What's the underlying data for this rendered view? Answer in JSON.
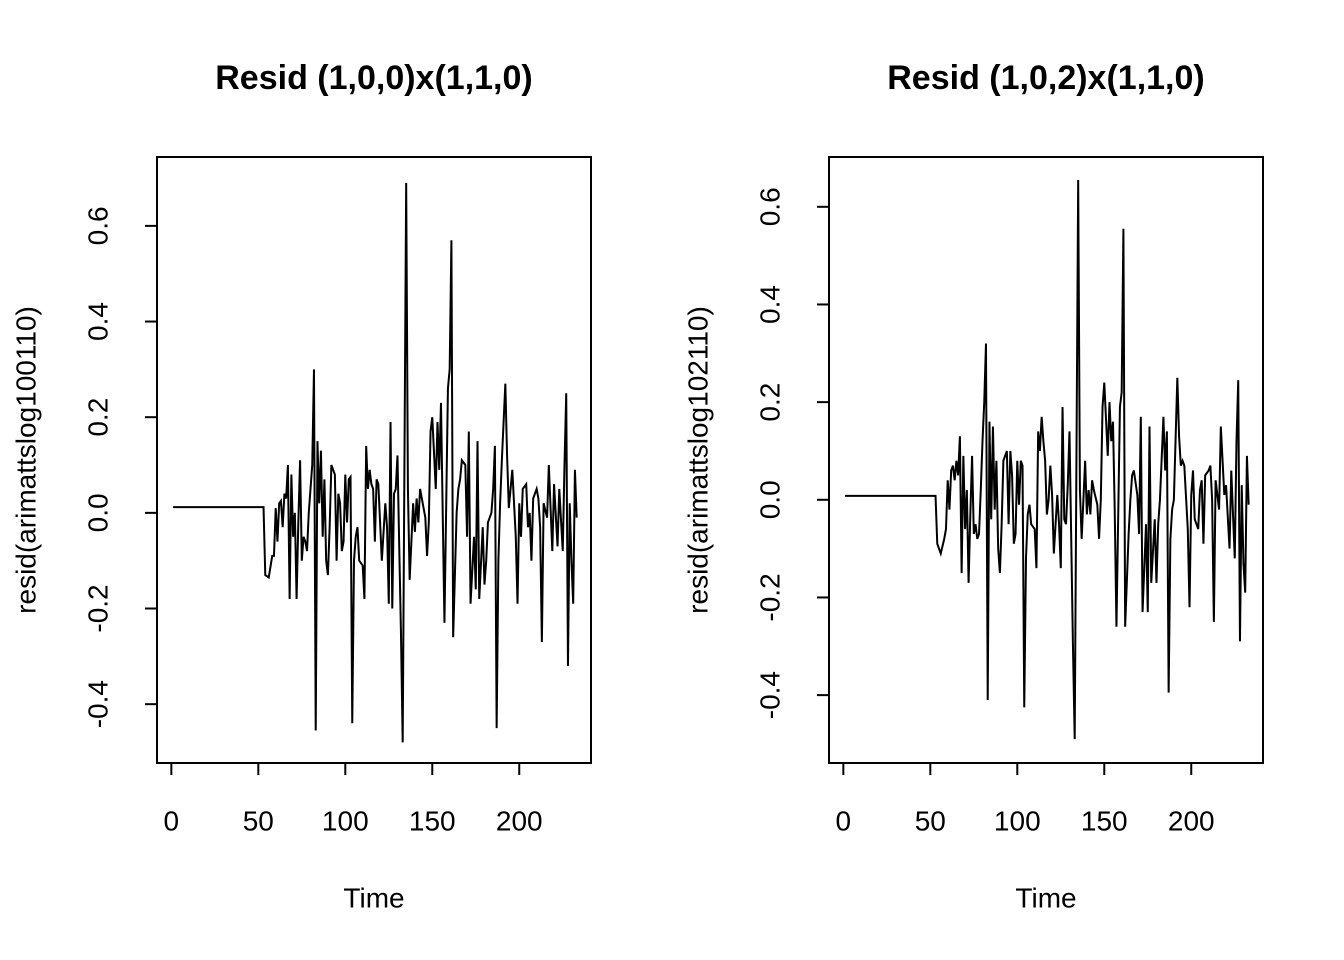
{
  "chart_data": [
    {
      "type": "line",
      "title": "Resid (1,0,0)x(1,1,0)",
      "x_label": "Time",
      "y_label": "resid(arimattslog100110)",
      "color": "#000000",
      "x": [
        1,
        53,
        54,
        56,
        58,
        59,
        60,
        61,
        62,
        63,
        64,
        65,
        66,
        67,
        68,
        69,
        70,
        71,
        72,
        73,
        74,
        75,
        76,
        77,
        78,
        79,
        80,
        81,
        82,
        83,
        84,
        85,
        86,
        87,
        88,
        89,
        90,
        91,
        92,
        94,
        95,
        96,
        97,
        98,
        99,
        100,
        101,
        102,
        103,
        104,
        105,
        106,
        107,
        108,
        110,
        111,
        112,
        113,
        114,
        115,
        116,
        117,
        118,
        119,
        120,
        121,
        123,
        124,
        125,
        126,
        127,
        128,
        129,
        130,
        131,
        132,
        133,
        135,
        136,
        137,
        139,
        140,
        141,
        142,
        143,
        144,
        146,
        147,
        148,
        149,
        150,
        152,
        153,
        154,
        155,
        156,
        157,
        159,
        160,
        161,
        162,
        164,
        165,
        166,
        167,
        169,
        170,
        171,
        172,
        174,
        175,
        176,
        177,
        179,
        180,
        181,
        182,
        184,
        185,
        186,
        187,
        188,
        189,
        190,
        192,
        193,
        194,
        195,
        196,
        198,
        199,
        200,
        201,
        202,
        204,
        205,
        206,
        207,
        208,
        210,
        211,
        212,
        213,
        214,
        216,
        217,
        219,
        220,
        222,
        223,
        225,
        226,
        227,
        228,
        229,
        230,
        231,
        232,
        233
      ],
      "values": [
        0.012,
        0.012,
        -0.13,
        -0.135,
        -0.09,
        -0.09,
        0.01,
        -0.06,
        0.02,
        0.025,
        -0.03,
        0.04,
        0.03,
        0.1,
        -0.18,
        0.08,
        -0.05,
        0.0,
        -0.18,
        -0.02,
        0.11,
        -0.1,
        -0.05,
        -0.06,
        -0.08,
        0.0,
        0.05,
        0.1,
        0.3,
        -0.455,
        0.15,
        0.02,
        0.13,
        -0.05,
        0.07,
        -0.1,
        -0.13,
        -0.03,
        0.1,
        0.08,
        -0.1,
        0.04,
        0.02,
        -0.08,
        -0.06,
        0.08,
        -0.02,
        0.07,
        0.075,
        -0.44,
        -0.1,
        -0.05,
        -0.03,
        -0.1,
        -0.11,
        -0.18,
        0.14,
        0.05,
        0.09,
        0.06,
        0.05,
        -0.06,
        0.07,
        0.06,
        -0.02,
        -0.1,
        0.02,
        -0.03,
        -0.19,
        0.19,
        -0.2,
        0.04,
        0.05,
        0.12,
        -0.07,
        -0.25,
        -0.48,
        0.69,
        0.05,
        -0.14,
        0.02,
        -0.04,
        0.03,
        -0.02,
        0.05,
        0.03,
        -0.01,
        -0.09,
        -0.02,
        0.17,
        0.2,
        0.05,
        0.19,
        0.09,
        0.23,
        0.0,
        -0.23,
        0.26,
        0.3,
        0.57,
        -0.26,
        0.0,
        0.05,
        0.07,
        0.11,
        0.1,
        -0.05,
        0.17,
        -0.19,
        -0.05,
        -0.16,
        0.15,
        -0.18,
        -0.03,
        -0.15,
        -0.1,
        -0.02,
        0.0,
        0.05,
        0.14,
        -0.45,
        -0.1,
        0.02,
        0.11,
        0.27,
        0.12,
        0.01,
        0.05,
        0.09,
        -0.05,
        -0.19,
        0.02,
        -0.05,
        0.05,
        0.06,
        -0.03,
        0.0,
        -0.1,
        0.03,
        0.05,
        0.03,
        -0.03,
        -0.27,
        0.02,
        -0.01,
        0.1,
        -0.08,
        0.06,
        -0.07,
        0.05,
        -0.08,
        0.1,
        0.25,
        -0.32,
        0.02,
        -0.1,
        -0.19,
        0.09,
        -0.01
      ],
      "xlim": [
        -8.24,
        241.24
      ],
      "xticks": [
        0,
        50,
        100,
        150,
        200
      ],
      "ylim": [
        -0.523,
        0.744
      ],
      "yticks": [
        -0.4,
        -0.2,
        {
          "value": 0,
          "label": "0.0"
        },
        0.2,
        0.4,
        0.6
      ]
    },
    {
      "type": "line",
      "title": "Resid (1,0,2)x(1,1,0)",
      "x_label": "Time",
      "y_label": "resid(arimattslog102110)",
      "color": "#000000",
      "x": [
        1,
        53,
        54,
        56,
        58,
        59,
        60,
        61,
        62,
        63,
        64,
        65,
        66,
        67,
        68,
        69,
        70,
        71,
        72,
        73,
        74,
        75,
        76,
        77,
        78,
        79,
        80,
        81,
        82,
        83,
        84,
        85,
        86,
        87,
        88,
        89,
        90,
        91,
        92,
        94,
        95,
        96,
        97,
        98,
        99,
        100,
        101,
        102,
        103,
        104,
        105,
        106,
        107,
        108,
        110,
        111,
        112,
        113,
        114,
        115,
        116,
        117,
        118,
        119,
        120,
        121,
        123,
        124,
        125,
        126,
        127,
        128,
        129,
        130,
        131,
        132,
        133,
        135,
        136,
        137,
        139,
        140,
        141,
        142,
        143,
        144,
        146,
        147,
        148,
        149,
        150,
        152,
        153,
        154,
        155,
        156,
        157,
        159,
        160,
        161,
        162,
        164,
        165,
        166,
        167,
        169,
        170,
        171,
        172,
        174,
        175,
        176,
        177,
        179,
        180,
        181,
        182,
        184,
        185,
        186,
        187,
        188,
        189,
        190,
        192,
        193,
        194,
        195,
        196,
        198,
        199,
        200,
        201,
        202,
        204,
        205,
        206,
        207,
        208,
        210,
        211,
        212,
        213,
        214,
        216,
        217,
        219,
        220,
        222,
        223,
        225,
        226,
        227,
        228,
        229,
        230,
        231,
        232,
        233
      ],
      "values": [
        0.008,
        0.008,
        -0.09,
        -0.11,
        -0.08,
        -0.06,
        0.04,
        -0.02,
        0.06,
        0.07,
        0.04,
        0.08,
        0.05,
        0.13,
        -0.15,
        0.09,
        -0.06,
        0.02,
        -0.17,
        -0.03,
        0.09,
        -0.07,
        -0.05,
        -0.08,
        -0.07,
        0.02,
        0.12,
        0.2,
        0.32,
        -0.41,
        0.16,
        -0.04,
        0.15,
        -0.02,
        0.08,
        -0.1,
        -0.15,
        -0.05,
        0.08,
        0.1,
        -0.05,
        0.1,
        0.05,
        -0.09,
        -0.07,
        0.08,
        -0.01,
        0.08,
        0.07,
        -0.425,
        -0.12,
        -0.03,
        -0.01,
        -0.05,
        -0.06,
        -0.14,
        0.14,
        0.1,
        0.17,
        0.12,
        0.08,
        -0.03,
        0.0,
        0.07,
        0.01,
        -0.11,
        0.01,
        -0.05,
        -0.14,
        0.19,
        -0.04,
        -0.05,
        0.03,
        0.14,
        -0.08,
        -0.3,
        -0.49,
        0.655,
        0.02,
        -0.08,
        0.08,
        -0.03,
        0.02,
        -0.03,
        0.04,
        0.02,
        -0.01,
        -0.08,
        0.0,
        0.19,
        0.24,
        0.09,
        0.2,
        0.12,
        0.16,
        -0.02,
        -0.26,
        0.19,
        0.22,
        0.555,
        -0.26,
        -0.07,
        0.0,
        0.05,
        0.06,
        0.01,
        -0.07,
        0.17,
        -0.23,
        -0.05,
        -0.23,
        0.15,
        -0.17,
        -0.04,
        -0.17,
        -0.05,
        0.0,
        0.17,
        0.06,
        0.14,
        -0.395,
        -0.08,
        -0.02,
        0.0,
        0.25,
        0.13,
        0.07,
        0.08,
        0.07,
        -0.06,
        -0.22,
        0.01,
        0.06,
        -0.04,
        -0.06,
        0.02,
        0.04,
        -0.09,
        0.05,
        0.06,
        0.07,
        0.0,
        -0.25,
        0.04,
        -0.02,
        0.15,
        0.01,
        0.03,
        -0.1,
        0.06,
        -0.12,
        0.12,
        0.245,
        -0.29,
        0.03,
        -0.13,
        -0.19,
        0.09,
        -0.01
      ],
      "xlim": [
        -8.24,
        241.24
      ],
      "xticks": [
        0,
        50,
        100,
        150,
        200
      ],
      "ylim": [
        -0.539,
        0.702
      ],
      "yticks": [
        -0.4,
        -0.2,
        {
          "value": 0,
          "label": "0.0"
        },
        0.2,
        0.4,
        0.6
      ]
    }
  ]
}
